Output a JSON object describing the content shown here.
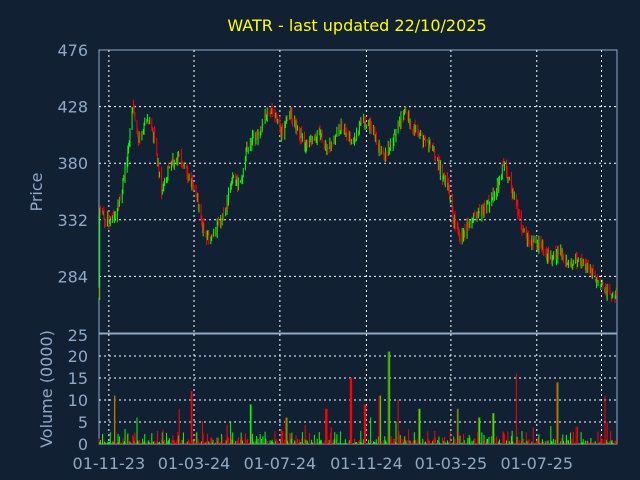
{
  "chart_data": [
    {
      "type": "candlestick",
      "title": "WATR - last updated 22/10/2025",
      "xlabel": "",
      "ylabel": "Price",
      "ylim": [
        236,
        476
      ],
      "yticks": [
        476,
        428,
        380,
        332,
        284
      ],
      "xticks": [
        "01-11-23",
        "01-03-24",
        "01-07-24",
        "01-11-24",
        "01-03-25",
        "01-07-25"
      ],
      "grid": true,
      "colors": {
        "up": "#00ff00",
        "down": "#ff0000",
        "background": "#112033",
        "grid": "#ffffff",
        "axis": "#8fa9c9",
        "title": "#ffff00"
      },
      "close_path": [
        [
          "2023-10-19",
          340
        ],
        [
          "2023-10-27",
          332
        ],
        [
          "2023-11-05",
          330
        ],
        [
          "2023-11-14",
          344
        ],
        [
          "2023-11-25",
          374
        ],
        [
          "2023-12-05",
          430
        ],
        [
          "2023-12-15",
          396
        ],
        [
          "2023-12-25",
          420
        ],
        [
          "2024-01-05",
          400
        ],
        [
          "2024-01-15",
          358
        ],
        [
          "2024-01-25",
          372
        ],
        [
          "2024-02-05",
          388
        ],
        [
          "2024-02-15",
          378
        ],
        [
          "2024-02-25",
          364
        ],
        [
          "2024-03-05",
          352
        ],
        [
          "2024-03-15",
          320
        ],
        [
          "2024-03-25",
          316
        ],
        [
          "2024-04-05",
          328
        ],
        [
          "2024-04-15",
          340
        ],
        [
          "2024-04-25",
          372
        ],
        [
          "2024-05-05",
          358
        ],
        [
          "2024-05-15",
          392
        ],
        [
          "2024-05-25",
          402
        ],
        [
          "2024-06-05",
          410
        ],
        [
          "2024-06-15",
          426
        ],
        [
          "2024-06-25",
          416
        ],
        [
          "2024-07-05",
          404
        ],
        [
          "2024-07-15",
          424
        ],
        [
          "2024-07-25",
          410
        ],
        [
          "2024-08-05",
          396
        ],
        [
          "2024-08-15",
          398
        ],
        [
          "2024-08-25",
          408
        ],
        [
          "2024-09-05",
          392
        ],
        [
          "2024-09-15",
          396
        ],
        [
          "2024-09-25",
          412
        ],
        [
          "2024-10-05",
          404
        ],
        [
          "2024-10-15",
          398
        ],
        [
          "2024-10-25",
          418
        ],
        [
          "2024-11-05",
          412
        ],
        [
          "2024-11-15",
          400
        ],
        [
          "2024-11-25",
          384
        ],
        [
          "2024-12-05",
          398
        ],
        [
          "2024-12-15",
          410
        ],
        [
          "2024-12-25",
          422
        ],
        [
          "2025-01-05",
          412
        ],
        [
          "2025-01-15",
          402
        ],
        [
          "2025-01-25",
          398
        ],
        [
          "2025-02-05",
          390
        ],
        [
          "2025-02-15",
          372
        ],
        [
          "2025-02-25",
          360
        ],
        [
          "2025-03-05",
          330
        ],
        [
          "2025-03-15",
          316
        ],
        [
          "2025-03-25",
          328
        ],
        [
          "2025-04-05",
          336
        ],
        [
          "2025-04-15",
          340
        ],
        [
          "2025-04-25",
          348
        ],
        [
          "2025-05-05",
          358
        ],
        [
          "2025-05-15",
          380
        ],
        [
          "2025-05-25",
          360
        ],
        [
          "2025-06-05",
          336
        ],
        [
          "2025-06-15",
          316
        ],
        [
          "2025-06-25",
          314
        ],
        [
          "2025-07-05",
          312
        ],
        [
          "2025-07-15",
          300
        ],
        [
          "2025-07-25",
          300
        ],
        [
          "2025-08-05",
          304
        ],
        [
          "2025-08-15",
          294
        ],
        [
          "2025-08-25",
          298
        ],
        [
          "2025-09-05",
          296
        ],
        [
          "2025-09-15",
          288
        ],
        [
          "2025-09-25",
          282
        ],
        [
          "2025-10-05",
          274
        ],
        [
          "2025-10-12",
          268
        ],
        [
          "2025-10-22",
          270
        ]
      ]
    },
    {
      "type": "bar",
      "xlabel": "",
      "ylabel": "Volume (0000)",
      "ylim": [
        0,
        25
      ],
      "yticks": [
        25,
        20,
        15,
        10,
        5,
        0
      ],
      "xticks": [
        "01-11-23",
        "01-03-24",
        "01-07-24",
        "01-11-24",
        "01-03-25",
        "01-07-25"
      ],
      "peaks": [
        [
          "2023-11-10",
          11
        ],
        [
          "2023-12-10",
          6
        ],
        [
          "2024-02-10",
          8
        ],
        [
          "2024-02-26",
          12
        ],
        [
          "2024-05-20",
          9
        ],
        [
          "2024-07-10",
          6
        ],
        [
          "2024-09-05",
          8
        ],
        [
          "2024-10-10",
          15
        ],
        [
          "2024-10-30",
          9
        ],
        [
          "2024-11-20",
          11
        ],
        [
          "2024-12-03",
          21
        ],
        [
          "2024-12-15",
          10
        ],
        [
          "2025-01-15",
          8
        ],
        [
          "2025-03-10",
          8
        ],
        [
          "2025-04-10",
          6
        ],
        [
          "2025-04-30",
          7
        ],
        [
          "2025-06-01",
          16
        ],
        [
          "2025-07-30",
          14
        ],
        [
          "2025-10-05",
          11
        ]
      ]
    }
  ]
}
